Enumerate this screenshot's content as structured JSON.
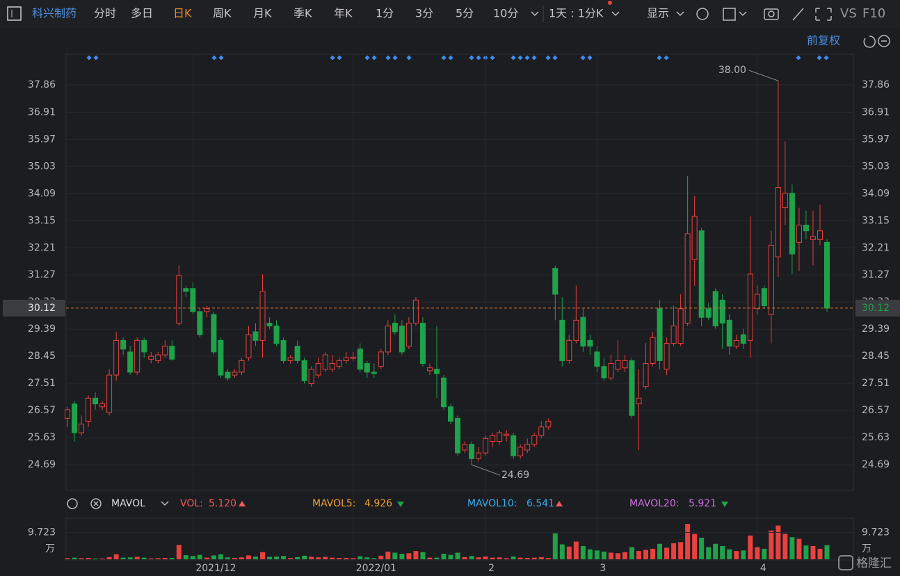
{
  "toolbar": {
    "stock": "科兴制药",
    "periods": [
      "分时",
      "多日",
      "日K",
      "周K",
      "月K",
      "季K",
      "年K",
      "1分",
      "3分",
      "5分",
      "10分"
    ],
    "interval": "1天 : 1分K",
    "display": "显示",
    "vs": "VS",
    "f10": "F10",
    "adjust": "前复权"
  },
  "watermark": "格隆汇",
  "chart_data": [
    {
      "type": "candlestick",
      "categories": [
        null,
        null,
        null,
        null,
        null,
        null,
        null,
        null,
        null,
        null,
        null,
        null,
        null,
        null,
        null,
        null,
        null,
        null,
        "2021/12",
        null,
        null,
        null,
        null,
        null,
        null,
        null,
        null,
        null,
        null,
        null,
        null,
        null,
        null,
        null,
        null,
        null,
        null,
        null,
        null,
        null,
        null,
        "2022/01",
        null,
        null,
        null,
        null,
        null,
        null,
        null,
        null,
        null,
        null,
        null,
        null,
        null,
        null,
        null,
        null,
        null,
        null,
        "2",
        null,
        null,
        null,
        null,
        null,
        null,
        null,
        null,
        null,
        null,
        null,
        null,
        null,
        null,
        null,
        "3",
        null,
        null,
        null,
        null,
        null,
        null,
        null,
        null,
        null,
        null,
        null,
        null,
        null,
        null,
        null,
        null,
        null,
        null,
        null,
        null,
        null,
        null,
        "4",
        null,
        null,
        null,
        null,
        null,
        null,
        null,
        null,
        null,
        null
      ],
      "open": [
        26.3,
        26.8,
        25.8,
        26.2,
        27.0,
        26.7,
        26.5,
        27.8,
        29.0,
        28.6,
        27.9,
        29.0,
        28.35,
        28.3,
        28.5,
        28.8,
        29.6,
        30.8,
        30.8,
        30.0,
        30.0,
        29.9,
        29.0,
        27.9,
        27.8,
        27.9,
        28.4,
        29.3,
        29.0,
        29.6,
        29.5,
        29.0,
        28.3,
        28.8,
        28.3,
        27.5,
        27.8,
        28.0,
        28.0,
        28.1,
        28.3,
        28.38,
        28.7,
        28.2,
        27.9,
        28.1,
        28.6,
        29.6,
        29.5,
        28.8,
        29.6,
        29.6,
        27.95,
        28.0,
        27.7,
        26.7,
        26.3,
        25.2,
        25.4,
        24.9,
        25.1,
        25.5,
        25.5,
        25.7,
        25.7,
        25.0,
        25.2,
        25.4,
        25.7,
        26.0,
        31.5,
        29.7,
        28.3,
        29.0,
        29.8,
        29.0,
        28.6,
        28.1,
        27.7,
        28.0,
        28.05,
        28.3,
        26.8,
        27.4,
        28.2,
        30.1,
        28.0,
        28.9,
        28.9,
        29.6,
        31.8,
        32.8,
        30.1,
        30.7,
        30.4,
        29.7,
        28.8,
        29.2,
        29.0,
        30.1,
        30.8,
        29.9,
        31.9,
        33.6,
        34.1,
        32.4,
        33.0,
        32.5,
        32.5,
        32.4
      ],
      "high": [
        26.7,
        26.9,
        26.4,
        27.1,
        27.2,
        26.9,
        28.0,
        29.3,
        29.1,
        28.8,
        29.1,
        29.1,
        28.6,
        28.6,
        29.0,
        29.0,
        31.6,
        30.9,
        31.0,
        30.1,
        30.2,
        30.0,
        29.1,
        28.0,
        28.0,
        28.4,
        29.5,
        29.6,
        31.3,
        29.8,
        29.7,
        29.1,
        28.5,
        29.0,
        28.4,
        28.1,
        28.4,
        28.6,
        28.5,
        28.4,
        28.6,
        28.6,
        28.9,
        28.3,
        28.2,
        28.7,
        29.7,
        29.9,
        29.7,
        29.8,
        30.5,
        29.8,
        28.2,
        29.5,
        27.8,
        26.8,
        26.4,
        25.5,
        25.5,
        25.3,
        25.7,
        25.8,
        25.9,
        25.9,
        25.8,
        25.4,
        25.6,
        25.8,
        26.2,
        26.3,
        31.6,
        30.5,
        29.2,
        30.9,
        30.1,
        29.2,
        28.8,
        28.4,
        28.5,
        29.0,
        28.5,
        28.4,
        28.0,
        28.9,
        29.3,
        30.4,
        29.1,
        30.2,
        30.6,
        34.7,
        34.0,
        32.9,
        30.3,
        30.8,
        30.6,
        29.9,
        29.2,
        29.4,
        33.3,
        30.9,
        30.9,
        32.8,
        38.0,
        35.9,
        34.4,
        33.6,
        33.5,
        33.5,
        33.7,
        32.5
      ],
      "low": [
        26.0,
        25.5,
        25.7,
        26.0,
        26.6,
        26.6,
        26.4,
        27.6,
        28.5,
        27.8,
        27.8,
        28.4,
        28.2,
        28.2,
        28.4,
        28.3,
        29.5,
        30.5,
        29.9,
        29.1,
        29.8,
        28.5,
        27.7,
        27.6,
        27.7,
        27.8,
        28.3,
        28.8,
        28.4,
        29.4,
        28.8,
        28.2,
        28.2,
        28.2,
        27.5,
        27.4,
        27.7,
        27.9,
        27.9,
        28.0,
        28.2,
        28.3,
        27.9,
        27.7,
        27.7,
        28.0,
        28.5,
        29.2,
        28.5,
        28.7,
        29.5,
        28.1,
        27.8,
        27.0,
        26.6,
        26.1,
        25.0,
        25.1,
        24.69,
        24.8,
        25.0,
        25.3,
        25.4,
        25.5,
        24.9,
        24.9,
        25.1,
        25.3,
        25.6,
        25.9,
        29.7,
        28.1,
        28.2,
        28.9,
        28.6,
        28.5,
        27.9,
        27.6,
        27.6,
        27.9,
        27.9,
        26.3,
        25.2,
        27.3,
        28.1,
        28.0,
        27.8,
        28.8,
        28.8,
        29.5,
        30.9,
        29.5,
        29.7,
        29.4,
        28.7,
        28.5,
        28.7,
        28.7,
        28.4,
        29.9,
        30.1,
        28.9,
        31.2,
        33.0,
        31.3,
        31.4,
        32.5,
        31.6,
        32.3,
        30.0
      ],
      "close": [
        26.6,
        25.8,
        26.1,
        27.0,
        26.8,
        26.8,
        27.8,
        29.0,
        28.7,
        27.9,
        29.0,
        28.6,
        28.45,
        28.5,
        28.8,
        28.35,
        31.25,
        30.7,
        30.0,
        29.2,
        30.1,
        28.6,
        27.8,
        27.7,
        27.9,
        28.3,
        29.2,
        29.0,
        30.7,
        29.5,
        28.9,
        28.3,
        28.4,
        28.3,
        27.6,
        28.0,
        28.2,
        28.5,
        28.2,
        28.3,
        28.4,
        28.42,
        28.0,
        27.9,
        27.85,
        28.6,
        29.5,
        29.3,
        28.6,
        29.6,
        30.4,
        28.2,
        28.05,
        27.85,
        26.7,
        26.2,
        25.1,
        25.4,
        24.9,
        25.1,
        25.6,
        25.7,
        25.8,
        25.75,
        25.0,
        25.3,
        25.4,
        25.7,
        26.0,
        26.2,
        30.6,
        28.3,
        29.0,
        29.7,
        28.8,
        28.8,
        28.1,
        27.7,
        28.2,
        28.3,
        28.3,
        26.4,
        27.0,
        28.2,
        29.1,
        28.3,
        28.9,
        29.5,
        30.1,
        32.7,
        33.3,
        29.8,
        29.8,
        29.5,
        29.6,
        28.8,
        29.0,
        28.9,
        31.3,
        30.6,
        30.2,
        32.3,
        34.3,
        34.1,
        32.0,
        33.0,
        32.8,
        32.6,
        32.8,
        30.12
      ],
      "up_color": "#e8413e",
      "down_color": "#1fa24a",
      "ylim": [
        23.8,
        38.92
      ],
      "yticks": [
        24.69,
        25.63,
        26.57,
        27.51,
        28.45,
        29.39,
        30.33,
        31.27,
        32.21,
        33.15,
        34.09,
        35.03,
        35.97,
        36.91,
        37.86
      ],
      "last": 30.12,
      "annotations": [
        {
          "value": 38,
          "label": "38.00"
        },
        {
          "value": 24.69,
          "label": "24.69"
        }
      ],
      "grid": true
    },
    {
      "type": "bar",
      "legend_title": "MAVOL",
      "legend": [
        {
          "name": "VOL:",
          "value": {
            "value": 5.12,
            "label": "5.120"
          },
          "color": "#f25a5a"
        },
        {
          "name": "MAVOL5:",
          "value": 4.926,
          "color": "#f0a030"
        },
        {
          "name": "MAVOL10:",
          "value": 6.541,
          "color": "#39aef0"
        },
        {
          "name": "MAVOL20:",
          "value": 5.921,
          "color": "#d070e0"
        }
      ],
      "values": [
        0.4,
        0.6,
        0.4,
        0.5,
        0.3,
        0.3,
        0.8,
        1.8,
        0.6,
        0.7,
        0.9,
        0.6,
        0.3,
        0.4,
        0.5,
        0.5,
        5.2,
        1.5,
        1.2,
        1.6,
        0.6,
        1.4,
        1.8,
        0.7,
        0.5,
        0.7,
        1.4,
        1.0,
        2.6,
        0.9,
        1.0,
        1.2,
        0.4,
        0.8,
        1.3,
        0.9,
        0.7,
        0.9,
        0.6,
        0.5,
        0.5,
        0.4,
        1.1,
        0.7,
        0.4,
        1.3,
        2.8,
        2.4,
        2.0,
        2.2,
        3.0,
        2.6,
        0.6,
        0.6,
        2.0,
        1.6,
        2.4,
        0.8,
        1.2,
        0.7,
        1.0,
        0.6,
        0.7,
        0.4,
        1.0,
        0.6,
        0.5,
        0.6,
        0.8,
        0.5,
        9.4,
        5.4,
        4.6,
        6.4,
        4.8,
        3.6,
        3.2,
        2.8,
        2.4,
        2.2,
        2.6,
        4.4,
        3.0,
        3.4,
        3.8,
        5.6,
        4.2,
        5.8,
        6.2,
        12.8,
        9.2,
        7.8,
        4.4,
        5.6,
        4.8,
        3.6,
        3.0,
        3.2,
        8.6,
        4.4,
        3.8,
        10.4,
        12.2,
        9.2,
        8.0,
        7.4,
        5.0,
        4.8,
        3.8,
        5.12
      ],
      "ylim": [
        0,
        14.84
      ],
      "yticks": [
        9.723
      ],
      "unit": "万"
    }
  ]
}
